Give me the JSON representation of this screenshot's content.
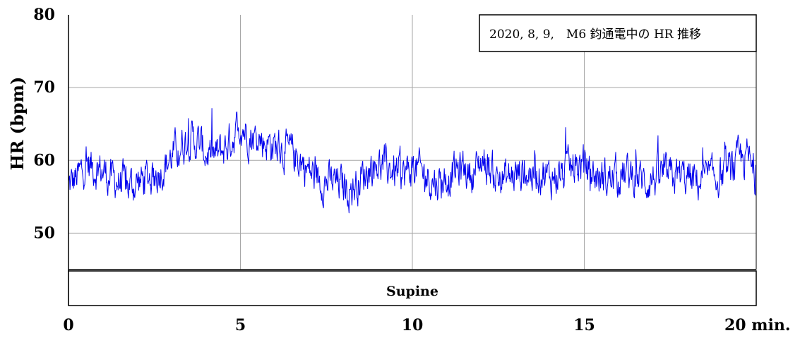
{
  "chart_data": {
    "type": "line",
    "title": "2020, 8, 9,　M6 鈞通電中の HR 推移",
    "ylabel": "HR (bpm)",
    "xunit": "min.",
    "xlim": [
      0,
      20
    ],
    "ylim": [
      45,
      80
    ],
    "xticks": [
      0,
      5,
      10,
      15,
      20
    ],
    "xtick_labels": [
      "0",
      "5",
      "10",
      "15",
      "20 min."
    ],
    "yticks": [
      50,
      60,
      70,
      80
    ],
    "ytick_labels": [
      "50",
      "60",
      "70",
      "80"
    ],
    "grid": true,
    "legend_position": "top-right",
    "series": [
      {
        "color": "#0000ee",
        "x": [
          0,
          0.25,
          0.5,
          0.75,
          1,
          1.25,
          1.5,
          1.75,
          2,
          2.25,
          2.5,
          2.75,
          3,
          3.25,
          3.5,
          3.75,
          4,
          4.25,
          4.5,
          4.75,
          5,
          5.25,
          5.5,
          5.75,
          6,
          6.25,
          6.5,
          6.75,
          7,
          7.25,
          7.5,
          7.75,
          8,
          8.25,
          8.5,
          8.75,
          9,
          9.25,
          9.5,
          9.75,
          10,
          10.25,
          10.5,
          10.75,
          11,
          11.25,
          11.5,
          11.75,
          12,
          12.25,
          12.5,
          12.75,
          13,
          13.25,
          13.5,
          13.75,
          14,
          14.25,
          14.5,
          14.75,
          15,
          15.25,
          15.5,
          15.75,
          16,
          16.25,
          16.5,
          16.75,
          17,
          17.25,
          17.5,
          17.75,
          18,
          18.25,
          18.5,
          18.75,
          19,
          19.25,
          19.5,
          19.75,
          20
        ],
        "y": [
          56.5,
          57.5,
          59.5,
          59,
          58.5,
          57.5,
          57,
          56.5,
          57,
          57.5,
          58,
          59,
          60.5,
          62,
          63,
          62.5,
          61,
          60.5,
          61.5,
          63,
          65,
          63.5,
          63,
          62.5,
          62,
          61.5,
          61,
          60,
          58.5,
          57.5,
          57,
          57,
          56.5,
          56,
          57.5,
          59,
          59.5,
          59,
          58.5,
          58,
          59,
          58.5,
          57.5,
          57,
          57.5,
          58.5,
          59,
          58,
          60,
          59,
          57.5,
          57.5,
          58,
          58.5,
          58,
          58.5,
          57.5,
          58,
          58.5,
          59,
          59.5,
          58,
          57.5,
          57.5,
          58,
          58,
          58,
          57,
          57.5,
          58,
          57.5,
          58,
          57.5,
          57,
          57.5,
          57.5,
          58,
          58.5,
          60,
          60.5,
          57
        ]
      }
    ],
    "bands": [
      {
        "label": "Supine",
        "start": 0,
        "end": 20
      }
    ]
  }
}
